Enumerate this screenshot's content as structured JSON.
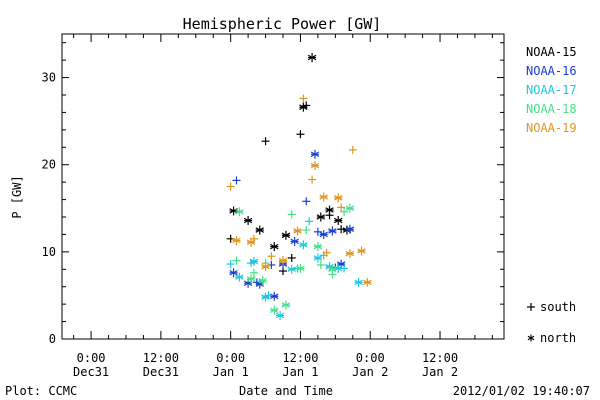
{
  "chart_data": {
    "type": "scatter",
    "title": "Hemispheric Power [GW]",
    "xlabel": "Date and Time",
    "ylabel": "P [GW]",
    "x_unit": "hours",
    "xlim": [
      -29,
      47
    ],
    "ylim": [
      0,
      35
    ],
    "y_ticks": [
      0,
      10,
      20,
      30
    ],
    "x_ticks": [
      {
        "x": -24,
        "line1": "0:00",
        "line2": "Dec31"
      },
      {
        "x": -12,
        "line1": "12:00",
        "line2": "Dec31"
      },
      {
        "x": 0,
        "line1": "0:00",
        "line2": "Jan 1"
      },
      {
        "x": 12,
        "line1": "12:00",
        "line2": "Jan 1"
      },
      {
        "x": 24,
        "line1": "0:00",
        "line2": "Jan 2"
      },
      {
        "x": 36,
        "line1": "12:00",
        "line2": "Jan 2"
      }
    ],
    "legend_position": "right",
    "marker_legend": [
      {
        "symbol": "+",
        "label": "south"
      },
      {
        "symbol": "*",
        "label": "north"
      }
    ],
    "series": [
      {
        "name": "NOAA-15",
        "color": "#000000",
        "south": [
          [
            0,
            11.5
          ],
          [
            6,
            22.7
          ],
          [
            9,
            7.8
          ],
          [
            10.5,
            9.3
          ],
          [
            12,
            23.5
          ],
          [
            13,
            26.8
          ],
          [
            17,
            14.2
          ],
          [
            19,
            12.6
          ]
        ],
        "north": [
          [
            0.5,
            14.7
          ],
          [
            3,
            13.6
          ],
          [
            5,
            12.5
          ],
          [
            7.5,
            10.6
          ],
          [
            9.5,
            11.9
          ],
          [
            12.5,
            26.6
          ],
          [
            14,
            32.3
          ],
          [
            15.5,
            14.0
          ],
          [
            17,
            14.8
          ],
          [
            18.5,
            13.6
          ],
          [
            20,
            12.5
          ]
        ]
      },
      {
        "name": "NOAA-16",
        "color": "#1a3fd4",
        "south": [
          [
            1,
            18.2
          ],
          [
            4.5,
            6.5
          ],
          [
            7,
            8.5
          ],
          [
            13,
            15.8
          ],
          [
            15,
            12.3
          ],
          [
            18,
            8.2
          ]
        ],
        "north": [
          [
            0.5,
            7.6
          ],
          [
            3,
            6.4
          ],
          [
            5,
            6.3
          ],
          [
            7.5,
            4.9
          ],
          [
            9,
            8.6
          ],
          [
            11,
            11.2
          ],
          [
            14.5,
            21.2
          ],
          [
            16,
            12.0
          ],
          [
            17.5,
            12.4
          ],
          [
            19,
            8.6
          ],
          [
            20.5,
            12.6
          ]
        ]
      },
      {
        "name": "NOAA-17",
        "color": "#1ec8e0",
        "south": [
          [
            0,
            8.6
          ],
          [
            3.5,
            8.7
          ],
          [
            6.5,
            5.0
          ],
          [
            11.5,
            8.1
          ],
          [
            13.5,
            13.5
          ],
          [
            16,
            9.6
          ],
          [
            19.5,
            8.1
          ]
        ],
        "north": [
          [
            1.5,
            7.1
          ],
          [
            4,
            8.9
          ],
          [
            6,
            4.8
          ],
          [
            8.5,
            2.7
          ],
          [
            10.5,
            8.0
          ],
          [
            12.5,
            10.8
          ],
          [
            15,
            9.3
          ],
          [
            17,
            8.3
          ],
          [
            18.5,
            8.1
          ],
          [
            22,
            6.5
          ]
        ]
      },
      {
        "name": "NOAA-18",
        "color": "#44e08a",
        "south": [
          [
            1,
            9.0
          ],
          [
            4,
            7.6
          ],
          [
            6,
            8.7
          ],
          [
            10.5,
            14.3
          ],
          [
            13,
            12.5
          ],
          [
            15.5,
            8.5
          ],
          [
            17.5,
            7.4
          ],
          [
            19.5,
            14.6
          ]
        ],
        "north": [
          [
            1.5,
            14.6
          ],
          [
            3.5,
            6.9
          ],
          [
            5.5,
            6.7
          ],
          [
            7.5,
            3.3
          ],
          [
            9.5,
            3.9
          ],
          [
            12,
            8.1
          ],
          [
            15,
            10.6
          ],
          [
            17.5,
            8.0
          ],
          [
            20.5,
            15.0
          ]
        ]
      },
      {
        "name": "NOAA-19",
        "color": "#e0961e",
        "south": [
          [
            0,
            17.5
          ],
          [
            4,
            11.5
          ],
          [
            7,
            9.5
          ],
          [
            12.5,
            27.6
          ],
          [
            14,
            18.3
          ],
          [
            16.5,
            9.9
          ],
          [
            19,
            15.1
          ],
          [
            21,
            21.7
          ]
        ],
        "north": [
          [
            1,
            11.3
          ],
          [
            3.5,
            11.1
          ],
          [
            6,
            8.3
          ],
          [
            9,
            9.0
          ],
          [
            11.5,
            12.4
          ],
          [
            14.5,
            19.9
          ],
          [
            16,
            16.3
          ],
          [
            18.5,
            16.2
          ],
          [
            20.5,
            9.8
          ],
          [
            22.5,
            10.1
          ],
          [
            23.5,
            6.5
          ]
        ]
      }
    ]
  },
  "footer": {
    "left": "Plot: CCMC",
    "right": "2012/01/02 19:40:07"
  }
}
